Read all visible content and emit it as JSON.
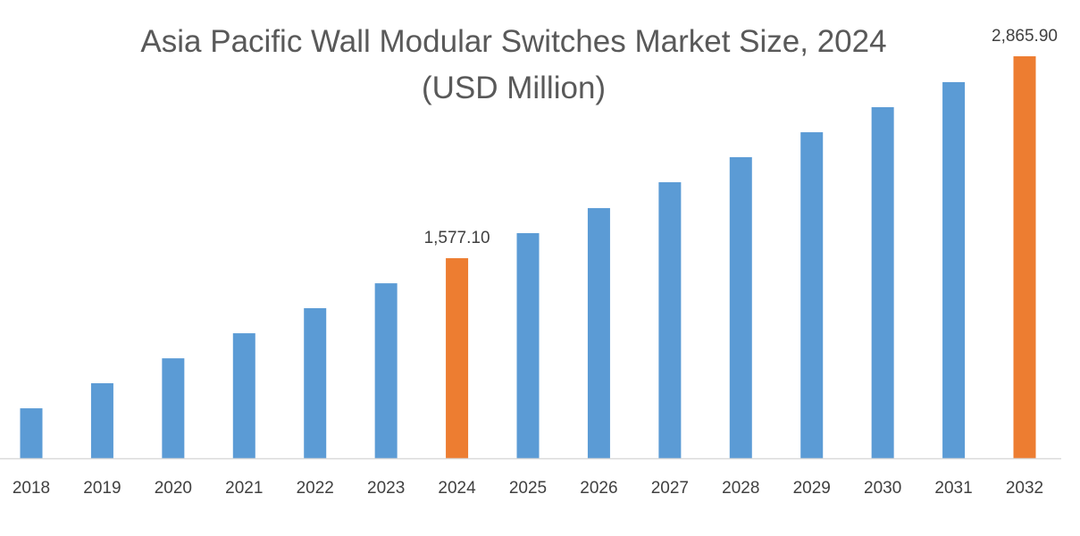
{
  "chart_data": {
    "type": "bar",
    "title": "Asia Pacific Wall Modular Switches Market Size, 2024",
    "subtitle": "(USD Million)",
    "xlabel": "",
    "ylabel": "",
    "categories": [
      "2018",
      "2019",
      "2020",
      "2021",
      "2022",
      "2023",
      "2024",
      "2025",
      "2026",
      "2027",
      "2028",
      "2029",
      "2030",
      "2031",
      "2032"
    ],
    "values": [
      619,
      779,
      938,
      1098,
      1258,
      1417,
      1577.1,
      1737,
      1897,
      2062,
      2222,
      2381,
      2541,
      2701,
      2865.9
    ],
    "data_labels": {
      "6": "1,577.10",
      "14": "2,865.90"
    },
    "highlight_indices": [
      6,
      14
    ],
    "ylim": [
      300,
      2865.9
    ],
    "grid": false,
    "colors": {
      "bar": "#5B9BD5",
      "highlight": "#ED7D31",
      "axis": "#D9D9D9"
    }
  }
}
